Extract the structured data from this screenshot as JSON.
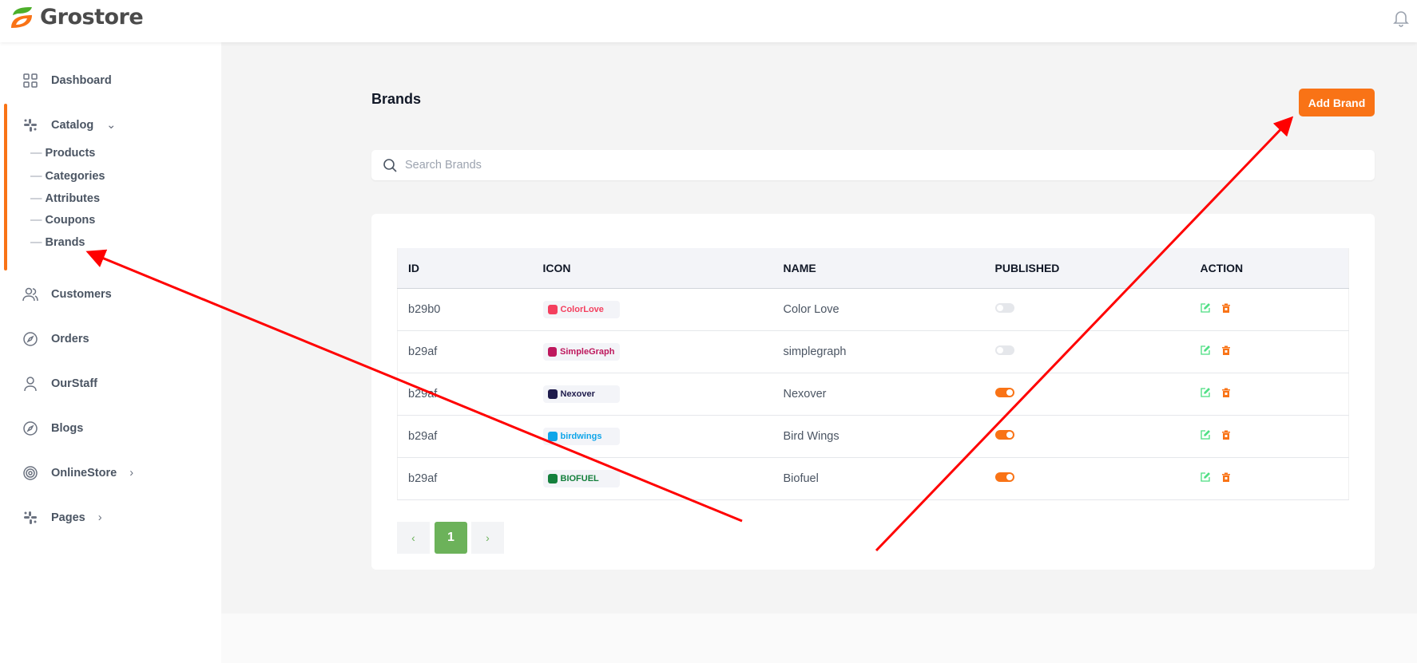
{
  "app": {
    "name": "Grostore"
  },
  "sidebar": {
    "items": [
      {
        "label": "Dashboard",
        "icon": "grid-icon"
      },
      {
        "label": "Catalog",
        "icon": "catalog-icon",
        "expanded": true,
        "children": [
          "Products",
          "Categories",
          "Attributes",
          "Coupons",
          "Brands"
        ]
      },
      {
        "label": "Customers",
        "icon": "users-icon"
      },
      {
        "label": "Orders",
        "icon": "compass-icon"
      },
      {
        "label": "OurStaff",
        "icon": "user-icon"
      },
      {
        "label": "Blogs",
        "icon": "compass-icon"
      },
      {
        "label": "OnlineStore",
        "icon": "target-icon"
      },
      {
        "label": "Pages",
        "icon": "catalog-icon"
      }
    ]
  },
  "page": {
    "title": "Brands",
    "add_label": "Add Brand",
    "search_placeholder": "Search Brands"
  },
  "table": {
    "columns": [
      "ID",
      "ICON",
      "NAME",
      "PUBLISHED",
      "ACTION"
    ],
    "rows": [
      {
        "id": "b29b0",
        "logo": "ColorLove",
        "name": "Color Love",
        "published": false,
        "logo_color": "#f43f5e"
      },
      {
        "id": "b29af",
        "logo": "SimpleGraph",
        "name": "simplegraph",
        "published": false,
        "logo_color": "#be185d"
      },
      {
        "id": "b29af",
        "logo": "Nexover",
        "name": "Nexover",
        "published": true,
        "logo_color": "#1e1b4b"
      },
      {
        "id": "b29af",
        "logo": "birdwings",
        "name": "Bird Wings",
        "published": true,
        "logo_color": "#0ea5e9"
      },
      {
        "id": "b29af",
        "logo": "BIOFUEL",
        "name": "Biofuel",
        "published": true,
        "logo_color": "#15803d"
      }
    ]
  },
  "pagination": {
    "prev": "‹",
    "current": "1",
    "next": "›"
  },
  "colors": {
    "accent": "#f97316",
    "green": "#6cb25a",
    "annotation": "#ff0000"
  }
}
